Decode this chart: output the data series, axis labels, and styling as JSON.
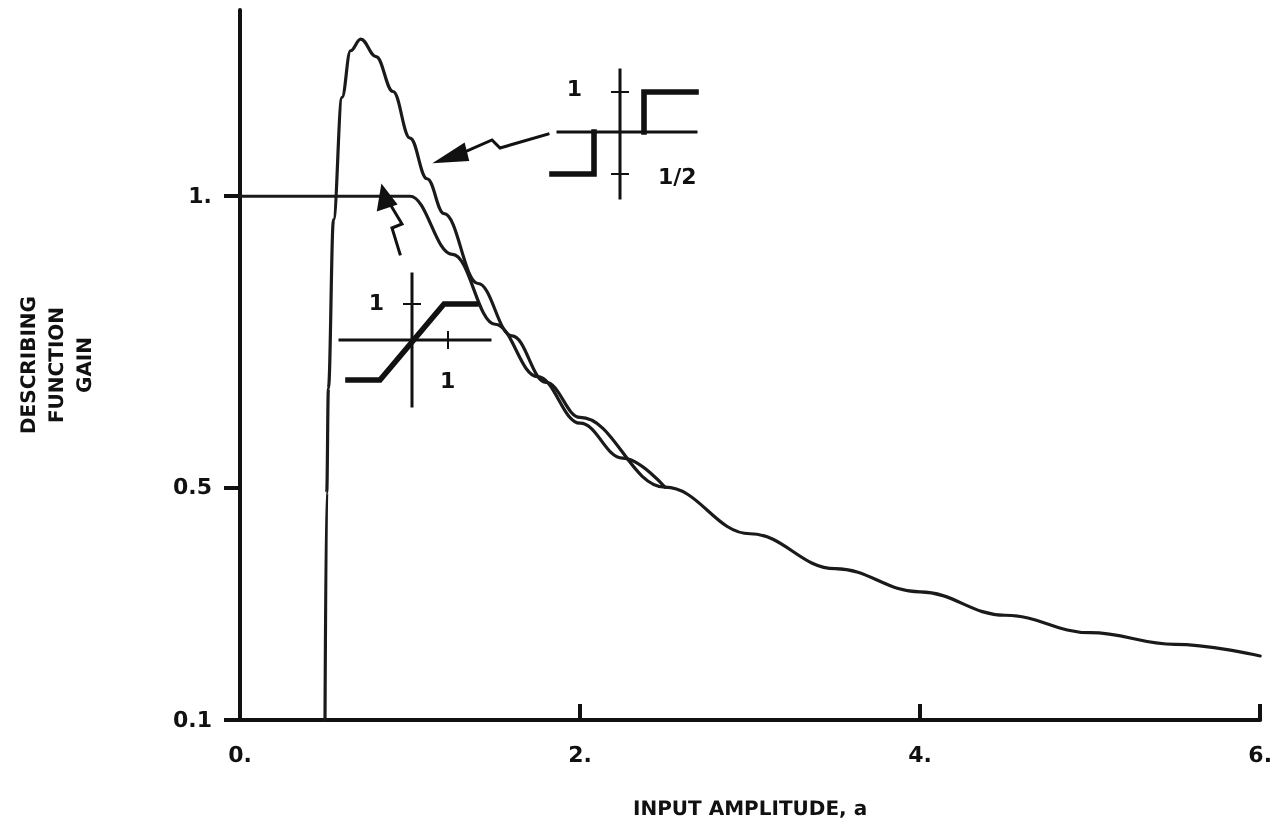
{
  "chart_data": {
    "type": "line",
    "xlabel": "INPUT AMPLITUDE, a",
    "ylabel": "DESCRIBING\nFUNCTION\nGAIN",
    "xlim": [
      0,
      6
    ],
    "xticks": [
      {
        "value": 0,
        "label": "0."
      },
      {
        "value": 2,
        "label": "2."
      },
      {
        "value": 4,
        "label": "4."
      },
      {
        "value": 6,
        "label": "6."
      }
    ],
    "ylim": [
      0.1,
      1.32
    ],
    "yticks": [
      0.1,
      0.5,
      {
        "value": 1,
        "label": "1."
      }
    ],
    "series": [
      {
        "color": "#1a1a1a",
        "x": [
          0.5,
          0.51,
          0.52,
          0.55,
          0.6,
          0.65,
          0.71,
          0.8,
          0.9,
          1.0,
          1.1,
          1.2,
          1.4,
          1.6,
          1.8,
          2.0,
          2.5,
          3.0,
          3.5,
          4.0,
          4.5,
          5.0,
          5.5,
          6.0
        ],
        "values": [
          0.1,
          0.49,
          0.67,
          0.96,
          1.17,
          1.25,
          1.27,
          1.24,
          1.18,
          1.1,
          1.03,
          0.97,
          0.85,
          0.76,
          0.68,
          0.62,
          0.5,
          0.42,
          0.36,
          0.32,
          0.28,
          0.25,
          0.23,
          0.21
        ]
      },
      {
        "color": "#1a1a1a",
        "x": [
          0,
          1,
          1.25,
          1.5,
          1.75,
          2.0,
          2.25,
          2.5
        ],
        "values": [
          1,
          1,
          0.9,
          0.78,
          0.69,
          0.61,
          0.55,
          0.5
        ]
      }
    ],
    "annotations": [
      "1",
      "1/2",
      "1",
      "1"
    ],
    "grid": false,
    "marker": "none",
    "line_style": "solid"
  }
}
